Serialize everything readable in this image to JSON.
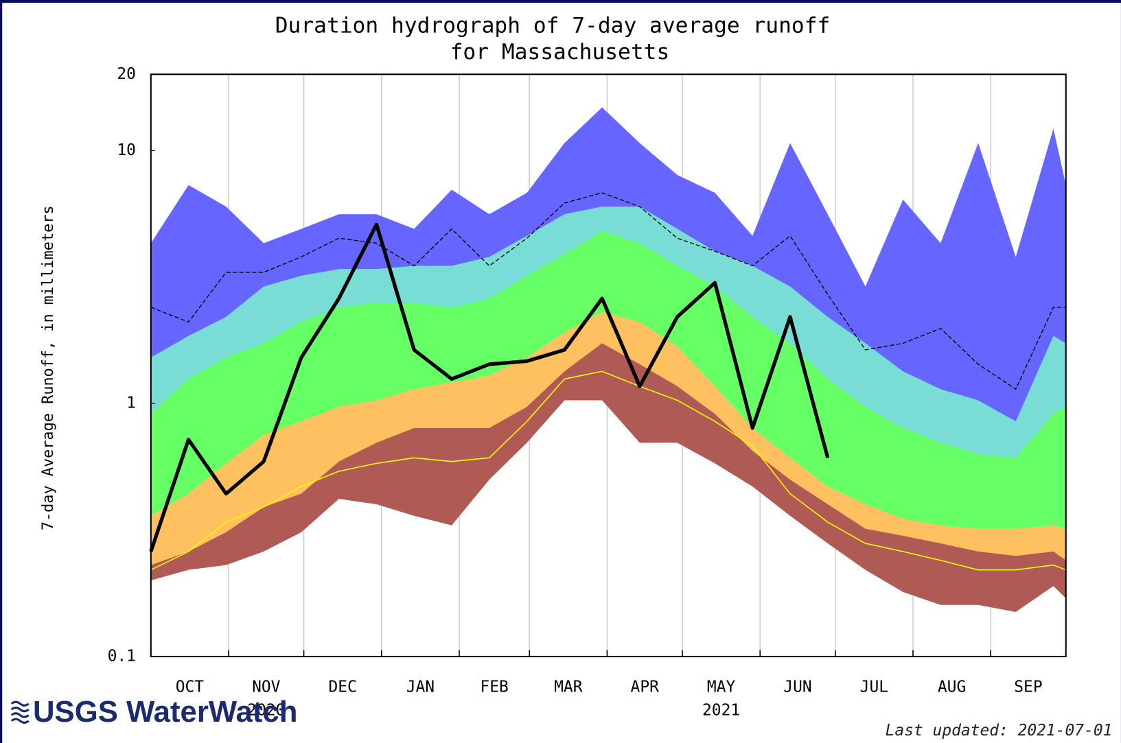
{
  "chart_data": {
    "type": "area",
    "title": [
      "Duration hydrograph of 7-day average runoff",
      "for Massachusetts"
    ],
    "y_label": "7-day Average Runoff, in millimeters",
    "log_y": true,
    "grid": true,
    "xlim": [
      0,
      365
    ],
    "xticks": [
      {
        "value": 0,
        "label": "OCT"
      },
      {
        "value": 31,
        "label": "NOV",
        "year": "2020"
      },
      {
        "value": 61,
        "label": "DEC"
      },
      {
        "value": 92,
        "label": "JAN"
      },
      {
        "value": 123,
        "label": "FEB"
      },
      {
        "value": 151,
        "label": "MAR"
      },
      {
        "value": 182,
        "label": "APR"
      },
      {
        "value": 212,
        "label": "MAY",
        "year": "2021"
      },
      {
        "value": 243,
        "label": "JUN"
      },
      {
        "value": 273,
        "label": "JUL"
      },
      {
        "value": 304,
        "label": "AUG"
      },
      {
        "value": 335,
        "label": "SEP"
      }
    ],
    "ylim": [
      0.1,
      20
    ],
    "yticks": [
      0.1,
      1,
      10,
      20
    ],
    "x": [
      0,
      15,
      30,
      45,
      60,
      75,
      90,
      105,
      120,
      135,
      150,
      165,
      180,
      195,
      210,
      225,
      240,
      255,
      270,
      285,
      300,
      315,
      330,
      345,
      360,
      365
    ],
    "series": [
      {
        "style": "area",
        "color": "#6666ff",
        "values": [
          4.3,
          7.3,
          6.0,
          4.3,
          4.9,
          5.6,
          5.6,
          4.9,
          7.0,
          5.6,
          6.8,
          10.7,
          14.8,
          10.7,
          8.0,
          6.8,
          4.6,
          10.7,
          5.6,
          2.9,
          6.4,
          4.3,
          10.7,
          3.8,
          12.2,
          7.3
        ]
      },
      {
        "style": "area",
        "color": "#77ddd5",
        "values": [
          1.52,
          1.85,
          2.2,
          2.9,
          3.2,
          3.4,
          3.4,
          3.5,
          3.5,
          3.8,
          4.6,
          5.6,
          6.0,
          6.0,
          4.9,
          4.0,
          3.5,
          2.9,
          2.2,
          1.73,
          1.34,
          1.14,
          1.03,
          0.85,
          1.85,
          1.73
        ]
      },
      {
        "style": "area",
        "color": "#66ff66",
        "values": [
          0.91,
          1.25,
          1.52,
          1.73,
          2.1,
          2.4,
          2.5,
          2.5,
          2.4,
          2.6,
          3.2,
          3.9,
          4.8,
          4.3,
          3.5,
          2.9,
          2.2,
          1.73,
          1.25,
          0.97,
          0.8,
          0.7,
          0.63,
          0.61,
          0.91,
          0.97
        ]
      },
      {
        "style": "area",
        "color": "#ffc060",
        "values": [
          0.36,
          0.44,
          0.58,
          0.75,
          0.85,
          0.97,
          1.03,
          1.14,
          1.21,
          1.29,
          1.52,
          1.91,
          2.3,
          2.1,
          1.68,
          1.17,
          0.8,
          0.61,
          0.47,
          0.4,
          0.35,
          0.33,
          0.32,
          0.32,
          0.33,
          0.32
        ]
      },
      {
        "style": "area",
        "color": "#b05a55",
        "values": [
          0.23,
          0.26,
          0.31,
          0.39,
          0.44,
          0.59,
          0.7,
          0.8,
          0.8,
          0.8,
          0.97,
          1.34,
          1.73,
          1.43,
          1.17,
          0.91,
          0.65,
          0.5,
          0.4,
          0.32,
          0.3,
          0.28,
          0.26,
          0.25,
          0.26,
          0.24
        ]
      },
      {
        "style": "area",
        "color": "#ffffff",
        "values": [
          0.2,
          0.22,
          0.23,
          0.26,
          0.31,
          0.42,
          0.4,
          0.36,
          0.33,
          0.5,
          0.7,
          1.03,
          1.03,
          0.7,
          0.7,
          0.58,
          0.47,
          0.36,
          0.28,
          0.22,
          0.18,
          0.16,
          0.16,
          0.15,
          0.19,
          0.17
        ]
      },
      {
        "style": "dashed",
        "color": "#000000",
        "values": [
          2.4,
          2.1,
          3.3,
          3.3,
          3.8,
          4.5,
          4.3,
          3.5,
          4.9,
          3.5,
          4.5,
          6.2,
          6.8,
          6.0,
          4.5,
          4.0,
          3.5,
          4.6,
          2.7,
          1.63,
          1.73,
          1.98,
          1.43,
          1.14,
          2.4,
          2.4
        ]
      },
      {
        "style": "thin",
        "color": "#ffff00",
        "values": [
          0.22,
          0.26,
          0.34,
          0.39,
          0.47,
          0.54,
          0.58,
          0.61,
          0.59,
          0.61,
          0.85,
          1.25,
          1.34,
          1.17,
          1.03,
          0.85,
          0.68,
          0.44,
          0.34,
          0.28,
          0.26,
          0.24,
          0.22,
          0.22,
          0.23,
          0.22
        ]
      },
      {
        "style": "thick",
        "color": "#000000",
        "values": [
          0.26,
          0.72,
          0.44,
          0.59,
          1.52,
          2.6,
          5.1,
          1.63,
          1.25,
          1.43,
          1.47,
          1.63,
          2.6,
          1.17,
          2.2,
          3.0,
          0.8,
          2.2,
          0.61,
          null,
          null,
          null,
          null,
          null,
          null,
          null
        ]
      }
    ]
  },
  "footer": {
    "logo": "USGS WaterWatch",
    "updated": "Last updated: 2021-07-01"
  }
}
